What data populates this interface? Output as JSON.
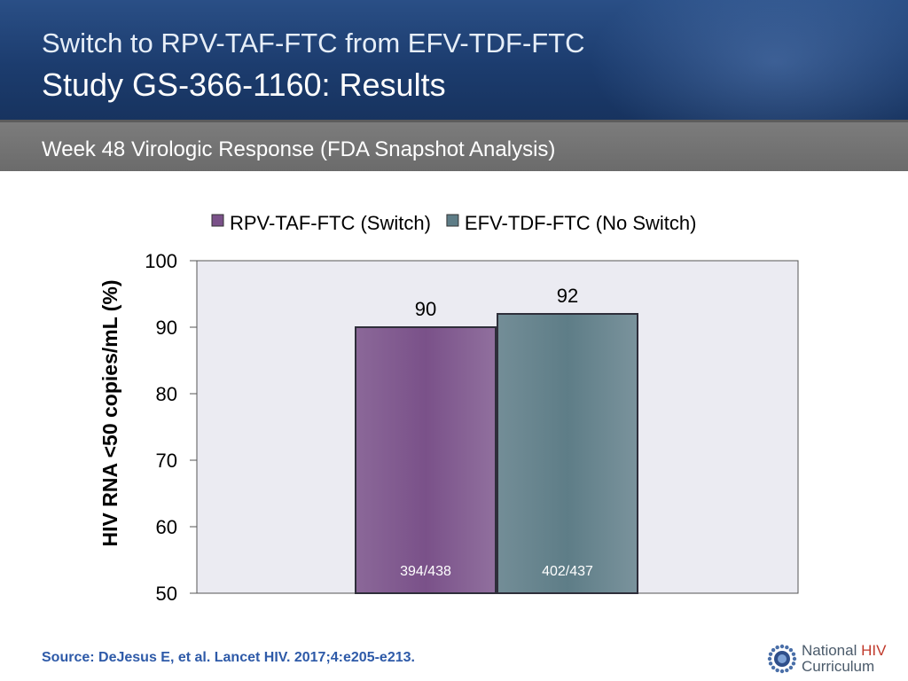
{
  "header": {
    "title_line1": "Switch to RPV-TAF-FTC from EFV-TDF-FTC",
    "title_line2": "Study GS-366-1160: Results"
  },
  "subheader": {
    "text": "Week 48 Virologic Response (FDA Snapshot Analysis)"
  },
  "chart_data": {
    "type": "bar",
    "categories": [
      ""
    ],
    "series": [
      {
        "name": "RPV-TAF-FTC (Switch)",
        "values": [
          90
        ],
        "label": "90",
        "count_label": "394/438",
        "color": "#7a5189"
      },
      {
        "name": "EFV-TDF-FTC (No Switch)",
        "values": [
          92
        ],
        "label": "92",
        "count_label": "402/437",
        "color": "#5e7d87"
      }
    ],
    "ylabel": "HIV RNA <50 copies/mL (%)",
    "ylim": [
      50,
      100
    ],
    "yticks": [
      100,
      90,
      80,
      70,
      60,
      50
    ],
    "grid": false,
    "legend": "top",
    "plot_background": "#ebebf2"
  },
  "footer": {
    "source": "Source: DeJesus E, et al. Lancet HIV. 2017;4:e205-e213.",
    "logo_line1_a": "National ",
    "logo_line1_b": "HIV",
    "logo_line2": "Curriculum"
  }
}
